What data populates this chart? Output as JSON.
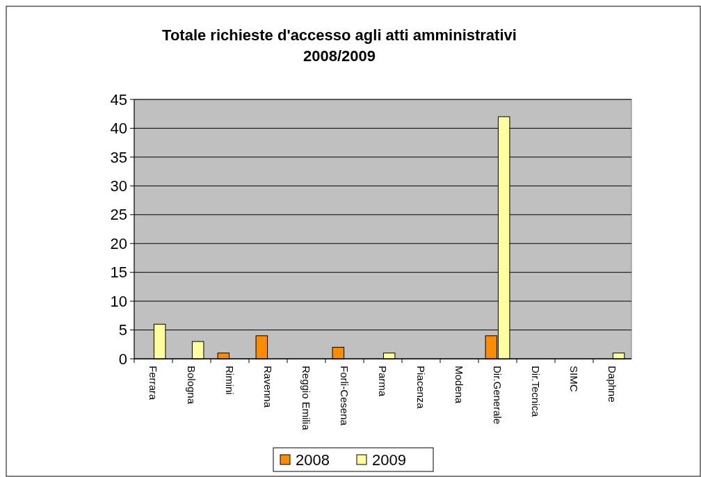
{
  "chart_data": {
    "type": "bar",
    "title": "Totale richieste d'accesso agli atti amministrativi\n2008/2009",
    "categories": [
      "Ferrara",
      "Bologna",
      "Rimini",
      "Ravenna",
      "Reggio Emilia",
      "Forli-Cesena",
      "Parma",
      "Piacenza",
      "Modena",
      "Dir.Generale",
      "Dir.Tecnica",
      "SIMC",
      "Daphne"
    ],
    "series": [
      {
        "name": "2008",
        "color": "#ff8c00",
        "values": [
          0,
          0,
          1,
          4,
          0,
          2,
          0,
          0,
          0,
          4,
          0,
          0,
          0
        ]
      },
      {
        "name": "2009",
        "color": "#ffffa0",
        "values": [
          6,
          3,
          0,
          0,
          0,
          0,
          1,
          0,
          0,
          42,
          0,
          0,
          1
        ]
      }
    ],
    "ylim": [
      0,
      45
    ],
    "yticks": [
      0,
      5,
      10,
      15,
      20,
      25,
      30,
      35,
      40,
      45
    ],
    "grid": "y",
    "legend": "bottom"
  }
}
